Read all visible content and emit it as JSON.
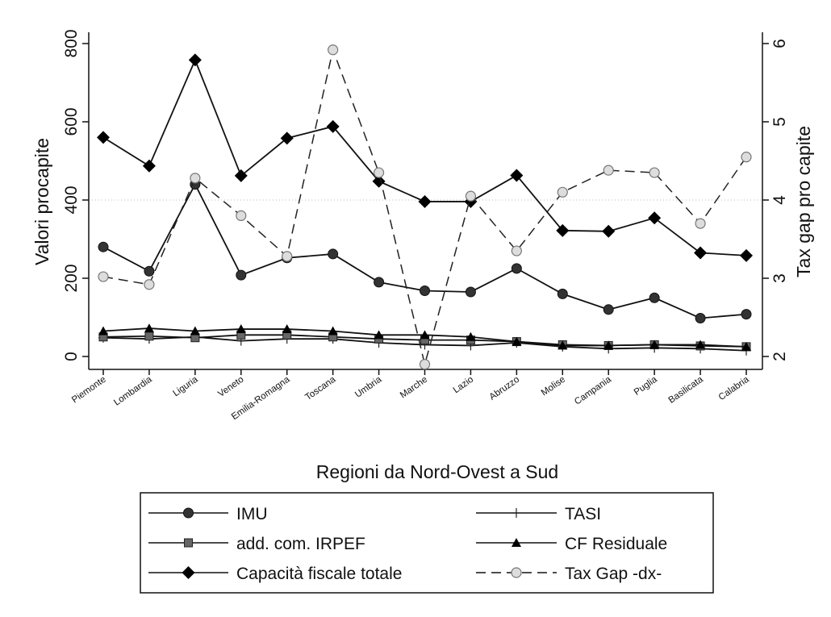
{
  "chart_data": {
    "type": "line",
    "xlabel": "Regioni da Nord-Ovest a Sud",
    "ylabel_left": "Valori procapite",
    "ylabel_right": "Tax gap pro capite",
    "categories": [
      "Piemonte",
      "Lombardia",
      "Liguria",
      "Veneto",
      "Emilia-Romagna",
      "Toscana",
      "Umbria",
      "Marche",
      "Lazio",
      "Abruzzo",
      "Molise",
      "Campania",
      "Puglia",
      "Basilicata",
      "Calabria"
    ],
    "ylim_left": [
      0,
      800
    ],
    "yticks_left": [
      "0",
      "200",
      "400",
      "600",
      "800"
    ],
    "ylim_right": [
      2,
      6
    ],
    "yticks_right": [
      "2",
      "3",
      "4",
      "5",
      "6"
    ],
    "grid": "horizontal dotted at 400",
    "legend_position": "bottom",
    "series": [
      {
        "name": "IMU",
        "axis": "left",
        "marker": "circle",
        "style": "solid",
        "values": [
          280,
          218,
          440,
          208,
          252,
          262,
          190,
          168,
          165,
          225,
          160,
          120,
          150,
          98,
          108
        ]
      },
      {
        "name": "TASI",
        "axis": "left",
        "marker": "plus",
        "style": "solid",
        "values": [
          48,
          45,
          50,
          40,
          45,
          45,
          35,
          30,
          28,
          35,
          25,
          20,
          22,
          20,
          15
        ]
      },
      {
        "name": "add. com. IRPEF",
        "axis": "left",
        "marker": "square",
        "style": "solid",
        "values": [
          50,
          52,
          48,
          55,
          55,
          50,
          45,
          42,
          42,
          38,
          30,
          28,
          30,
          27,
          25
        ]
      },
      {
        "name": "CF Residuale",
        "axis": "left",
        "marker": "triangle",
        "style": "solid",
        "values": [
          65,
          72,
          65,
          70,
          70,
          65,
          55,
          55,
          50,
          38,
          28,
          28,
          30,
          30,
          25
        ]
      },
      {
        "name": "Capacità fiscale totale",
        "axis": "left",
        "marker": "diamond",
        "style": "solid",
        "values": [
          560,
          487,
          758,
          462,
          558,
          588,
          448,
          396,
          396,
          463,
          322,
          320,
          354,
          265,
          258
        ]
      },
      {
        "name": "Tax Gap -dx-",
        "axis": "right",
        "marker": "hollow-circle",
        "style": "dashed",
        "values": [
          3.02,
          2.92,
          4.28,
          3.8,
          3.28,
          5.92,
          4.35,
          1.9,
          4.05,
          3.35,
          4.1,
          4.38,
          4.35,
          3.7,
          4.55
        ]
      }
    ]
  }
}
